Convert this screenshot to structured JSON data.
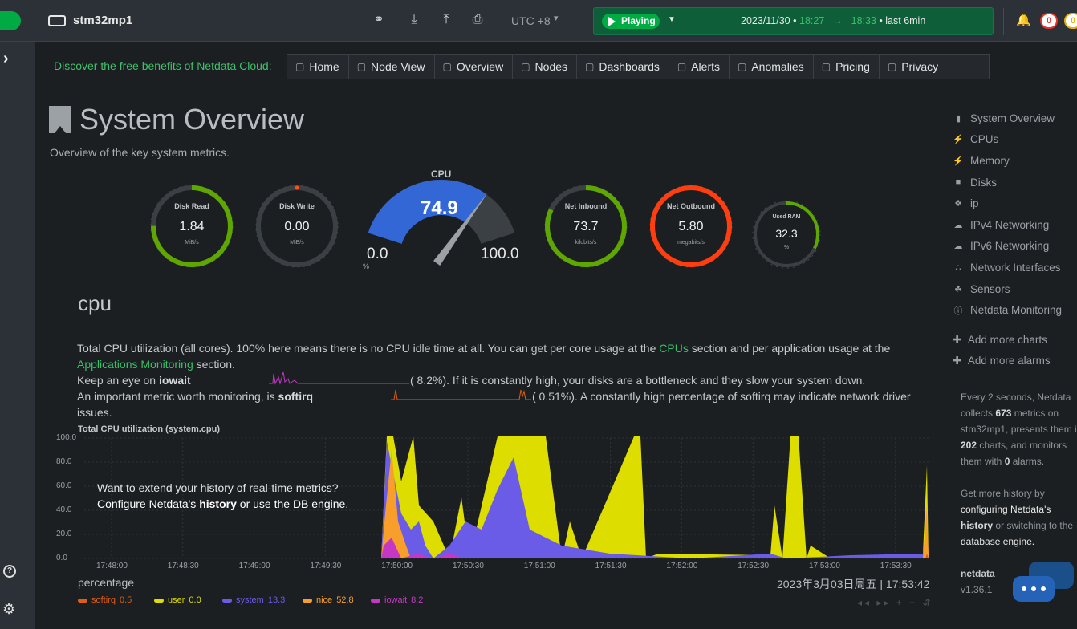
{
  "topbar": {
    "node_name": "stm32mp1",
    "timezone": "UTC +8",
    "play_state": "Playing",
    "date": "2023/11/30",
    "time_from": "18:27",
    "time_to": "18:33",
    "range_label": "last 6min",
    "alarms_critical": "0",
    "alarms_warning": "0",
    "bullet": "•",
    "arrow": "→",
    "icons": [
      "bulb-icon",
      "download-icon",
      "upload-icon",
      "print-icon",
      "bell-icon"
    ]
  },
  "promo": "Discover the free benefits of Netdata Cloud:",
  "nav": [
    {
      "label": "Home",
      "icon": "monitor-icon"
    },
    {
      "label": "Node View",
      "icon": "node-view-icon"
    },
    {
      "label": "Overview",
      "icon": "overview-icon"
    },
    {
      "label": "Nodes",
      "icon": "nodes-icon"
    },
    {
      "label": "Dashboards",
      "icon": "dashboard-icon"
    },
    {
      "label": "Alerts",
      "icon": "alert-bell-icon"
    },
    {
      "label": "Anomalies",
      "icon": "anomalies-icon"
    },
    {
      "label": "Pricing",
      "icon": "shield-icon"
    },
    {
      "label": "Privacy",
      "icon": "lock-icon"
    }
  ],
  "overview": {
    "title": "System Overview",
    "subtitle": "Overview of the key system metrics."
  },
  "gauges": {
    "disk_read": {
      "label": "Disk Read",
      "value": "1.84",
      "unit": "MiB/s",
      "fraction": 0.75,
      "color": "#5ea700"
    },
    "disk_write": {
      "label": "Disk Write",
      "value": "0.00",
      "unit": "MiB/s",
      "fraction": 0.0,
      "color": "#ff4e1f"
    },
    "cpu": {
      "label": "CPU",
      "value": "74.9",
      "min": "0.0",
      "max": "100.0",
      "unit": "%",
      "fraction": 0.749,
      "color": "#3367d6"
    },
    "net_in": {
      "label": "Net Inbound",
      "value": "73.7",
      "unit": "kilobits/s",
      "fraction": 0.82,
      "color": "#5ea700"
    },
    "net_out": {
      "label": "Net Outbound",
      "value": "5.80",
      "unit": "megabits/s",
      "fraction": 1.0,
      "color": "#ff3d0e"
    },
    "ram": {
      "label": "Used RAM",
      "value": "32.3",
      "unit": "%",
      "fraction": 0.323,
      "color": "#5ea700"
    }
  },
  "cpu_section": {
    "heading": "cpu",
    "line1a": "Total CPU utilization (all cores). 100% here means there is no CPU idle time at all. You can get per core usage at the ",
    "link_cpus": "CPUs",
    "line1b": " section and per application usage at the",
    "link_apps": "Applications Monitoring",
    "line2b": " section.",
    "line3a": "Keep an eye on ",
    "iowait": "iowait",
    "line3b": "( 8.2%). If it is constantly high, your disks are a bottleneck and they slow your system down.",
    "line4a": "An important metric worth monitoring, is ",
    "softirq": "softirq",
    "line4b": "( 0.51%). A constantly high percentage of softirq may indicate network driver",
    "line5": "issues."
  },
  "chart_data": {
    "type": "area",
    "title": "Total CPU utilization (system.cpu)",
    "ylabel": "percentage",
    "ylim": [
      0,
      100
    ],
    "yticks": [
      "100.0",
      "80.0",
      "60.0",
      "40.0",
      "20.0",
      "0.0"
    ],
    "xticks": [
      "17:48:00",
      "17:48:30",
      "17:49:00",
      "17:49:30",
      "17:50:00",
      "17:50:30",
      "17:51:00",
      "17:51:30",
      "17:52:00",
      "17:52:30",
      "17:53:00",
      "17:53:30"
    ],
    "timestamp": "2023年3月03日周五 | 17:53:42",
    "overlay_line1": "Want to extend your history of real-time metrics?",
    "overlay_a": "Configure Netdata's ",
    "overlay_b": "history",
    "overlay_c": " or use the ",
    "overlay_d": "DB engine",
    "overlay_e": ".",
    "series": [
      {
        "name": "softirq",
        "value": "0.5",
        "color": "#e15d12"
      },
      {
        "name": "user",
        "value": "0.0",
        "color": "#dddd00"
      },
      {
        "name": "system",
        "value": "13.3",
        "color": "#6b5ce8"
      },
      {
        "name": "nice",
        "value": "52.8",
        "color": "#f89f2b"
      },
      {
        "name": "iowait",
        "value": "8.2",
        "color": "#c637c6"
      }
    ]
  },
  "toc": [
    {
      "label": "System Overview",
      "icon": "bookmark-icon"
    },
    {
      "label": "CPUs",
      "icon": "bolt-icon"
    },
    {
      "label": "Memory",
      "icon": "bolt-icon"
    },
    {
      "label": "Disks",
      "icon": "folder-icon"
    },
    {
      "label": "ip",
      "icon": "puzzle-icon"
    },
    {
      "label": "IPv4 Networking",
      "icon": "cloud-icon"
    },
    {
      "label": "IPv6 Networking",
      "icon": "cloud-icon"
    },
    {
      "label": "Network Interfaces",
      "icon": "share-icon"
    },
    {
      "label": "Sensors",
      "icon": "leaf-icon"
    },
    {
      "label": "Netdata Monitoring",
      "icon": "info-icon"
    }
  ],
  "toc_actions": {
    "add_charts": "Add more charts",
    "add_alarms": "Add more alarms"
  },
  "info": {
    "l1": "Every 2 seconds, Netdata",
    "l2a": "collects ",
    "metrics": "673",
    "l2b": " metrics on",
    "l3": "stm32mp1, presents them in",
    "charts": "202",
    "l4b": " charts, and monitors",
    "l5a": "them with ",
    "alarms": "0",
    "l5b": " alarms.",
    "h1": "Get more history by",
    "h2": "configuring Netdata's",
    "h3a": "history",
    "h3b": " or switching to the",
    "h4": "database engine.",
    "product": "netdata",
    "version": "v1.36.1"
  }
}
